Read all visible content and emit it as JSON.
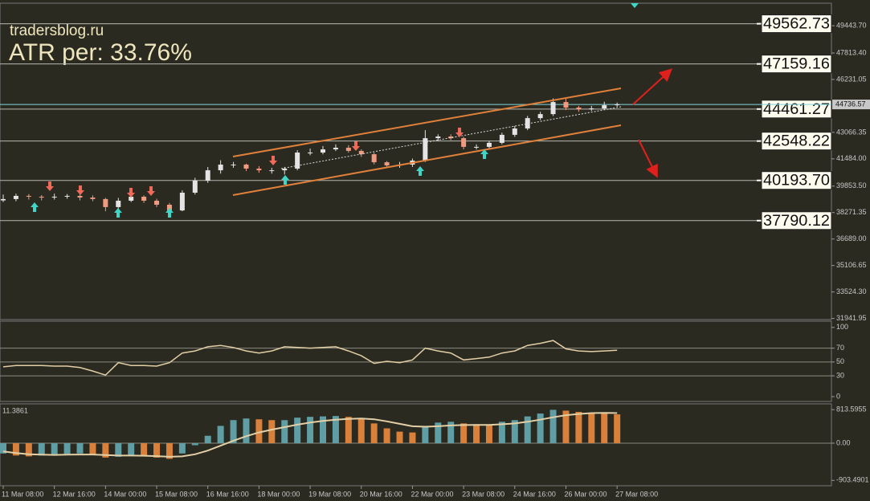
{
  "header": {
    "site": "tradersblog.ru",
    "atr": "ATR per: 33.76%"
  },
  "chart_data": [
    {
      "type": "candlestick",
      "ohlc": [
        [
          39000,
          39350,
          38900,
          39080
        ],
        [
          39080,
          39400,
          38950,
          39270
        ],
        [
          39270,
          39380,
          39050,
          39220
        ],
        [
          39220,
          39320,
          39000,
          39170
        ],
        [
          39170,
          39400,
          39050,
          39220
        ],
        [
          39220,
          39380,
          39100,
          39270
        ],
        [
          39270,
          39350,
          39000,
          39170
        ],
        [
          39170,
          39300,
          38950,
          39080
        ],
        [
          39080,
          39150,
          38350,
          38600
        ],
        [
          38600,
          39150,
          38500,
          38980
        ],
        [
          38980,
          39400,
          38900,
          39220
        ],
        [
          39220,
          39300,
          38850,
          38980
        ],
        [
          38980,
          39100,
          38600,
          38740
        ],
        [
          38740,
          38850,
          38300,
          38400
        ],
        [
          38400,
          39600,
          38350,
          39460
        ],
        [
          39460,
          40350,
          39350,
          40180
        ],
        [
          40180,
          41000,
          40050,
          40800
        ],
        [
          40800,
          41400,
          40600,
          41140
        ],
        [
          41140,
          41300,
          40950,
          41140
        ],
        [
          41140,
          41200,
          40750,
          40900
        ],
        [
          40900,
          41050,
          40650,
          40800
        ],
        [
          40800,
          40950,
          40600,
          40800
        ],
        [
          40800,
          41000,
          40550,
          40900
        ],
        [
          40900,
          42000,
          40800,
          41860
        ],
        [
          41860,
          42100,
          41700,
          41860
        ],
        [
          41860,
          42250,
          41750,
          42050
        ],
        [
          42050,
          42350,
          41950,
          42150
        ],
        [
          42150,
          42300,
          41850,
          41960
        ],
        [
          41960,
          42050,
          41600,
          41760
        ],
        [
          41760,
          41850,
          41150,
          41280
        ],
        [
          41280,
          41350,
          40950,
          41090
        ],
        [
          41090,
          41300,
          40950,
          41140
        ],
        [
          41140,
          41500,
          41000,
          41380
        ],
        [
          41380,
          43200,
          41300,
          42720
        ],
        [
          42720,
          42950,
          42550,
          42820
        ],
        [
          42820,
          42950,
          42600,
          42720
        ],
        [
          42720,
          42800,
          42050,
          42200
        ],
        [
          42200,
          42350,
          42050,
          42200
        ],
        [
          42200,
          42550,
          42100,
          42440
        ],
        [
          42440,
          43050,
          42350,
          42920
        ],
        [
          42920,
          43450,
          42800,
          43300
        ],
        [
          43300,
          44050,
          43200,
          43920
        ],
        [
          43920,
          44300,
          43800,
          44160
        ],
        [
          44160,
          45100,
          44050,
          44880
        ],
        [
          44880,
          45100,
          44400,
          44550
        ],
        [
          44550,
          44650,
          44300,
          44450
        ],
        [
          44450,
          44650,
          44350,
          44500
        ],
        [
          44500,
          44900,
          44400,
          44690
        ],
        [
          44690,
          44850,
          44600,
          44740
        ]
      ],
      "up_color": "#e4e4e4",
      "down_color": "#f09a80",
      "ylim": [
        31875,
        50790
      ],
      "yticks": [
        {
          "value": 49443.7,
          "label": "49443.70"
        },
        {
          "value": 47813.4,
          "label": "47813.40"
        },
        46231.05,
        43066.35,
        {
          "value": 41484,
          "label": "41484.00"
        },
        {
          "value": 39853.5,
          "label": "39853.50"
        },
        38271.35,
        {
          "value": 36689,
          "label": "36689.00"
        },
        35106.65,
        {
          "value": 33524.3,
          "label": "33524.30"
        },
        31941.95
      ],
      "current_price": 44736.57,
      "levels": [
        49562.73,
        47159.16,
        44461.27,
        42548.22,
        {
          "value": 40193.7,
          "label": "40193.70"
        },
        37790.12
      ]
    },
    {
      "type": "line",
      "values": [
        43,
        45,
        45,
        45,
        44,
        44,
        42,
        37,
        31,
        49,
        45,
        45,
        44,
        49,
        63,
        66,
        72,
        74,
        71,
        66,
        63,
        66,
        72,
        71,
        70,
        71,
        72,
        66,
        59,
        48,
        51,
        49,
        53,
        70,
        66,
        63,
        53,
        55,
        57,
        63,
        66,
        74,
        77,
        81,
        69,
        66,
        65,
        66,
        67
      ],
      "color": "#e3cfa6",
      "ylim": [
        -7,
        109
      ],
      "yticks": [
        0,
        30,
        50,
        70,
        100
      ]
    },
    {
      "type": "bar",
      "values": [
        -250,
        -300,
        -320,
        -300,
        -280,
        -260,
        -250,
        -280,
        -350,
        -330,
        -300,
        -320,
        -350,
        -380,
        -250,
        -50,
        180,
        420,
        560,
        600,
        580,
        560,
        560,
        620,
        640,
        650,
        660,
        640,
        600,
        480,
        360,
        280,
        260,
        420,
        500,
        520,
        480,
        460,
        450,
        520,
        560,
        650,
        720,
        810,
        790,
        760,
        740,
        730,
        700
      ],
      "rising_color": "#5e9ea4",
      "falling_color": "#d9803a",
      "signal": {
        "color": "#e3cfa6",
        "values": [
          -200,
          -240,
          -270,
          -280,
          -285,
          -280,
          -275,
          -275,
          -290,
          -300,
          -300,
          -305,
          -315,
          -330,
          -320,
          -270,
          -180,
          -60,
          60,
          170,
          260,
          330,
          390,
          450,
          500,
          540,
          570,
          590,
          600,
          580,
          530,
          470,
          410,
          400,
          410,
          430,
          440,
          445,
          445,
          460,
          480,
          520,
          570,
          630,
          680,
          710,
          730,
          735,
          730
        ]
      },
      "ylim": [
        -1034,
        955
      ],
      "yticks": [
        -903.4901,
        {
          "value": 0,
          "label": "0.00"
        },
        813.5955
      ],
      "annotation": "11.3861",
      "categories": [
        "11 Mar 08:00",
        null,
        null,
        null,
        "12 Mar 16:00",
        null,
        null,
        null,
        "14 Mar 00:00",
        null,
        null,
        null,
        "15 Mar 08:00",
        null,
        null,
        null,
        "16 Mar 16:00",
        null,
        null,
        null,
        "18 Mar 00:00",
        null,
        null,
        null,
        "19 Mar 08:00",
        null,
        null,
        null,
        "20 Mar 16:00",
        null,
        null,
        null,
        "22 Mar 00:00",
        null,
        null,
        null,
        "23 Mar 08:00",
        null,
        null,
        null,
        "24 Mar 16:00",
        null,
        null,
        null,
        "26 Mar 00:00",
        null,
        null,
        null,
        "27 Mar 08:00"
      ]
    }
  ]
}
